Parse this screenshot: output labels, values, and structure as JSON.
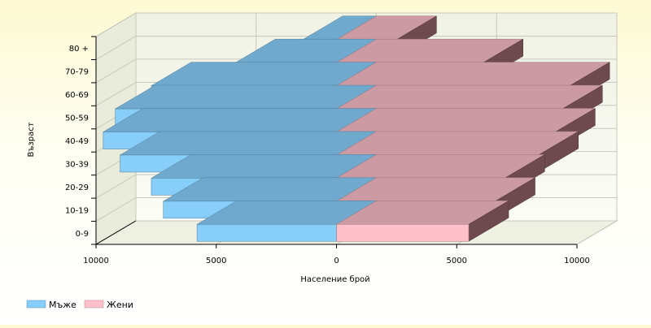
{
  "chart_data": {
    "type": "bar",
    "orientation": "horizontal",
    "style": "population-pyramid-3d",
    "categories": [
      "0-9",
      "10-19",
      "20-29",
      "30-39",
      "40-49",
      "50-59",
      "60-69",
      "70-79",
      "80 +"
    ],
    "series": [
      {
        "name": "Мъже",
        "side": "left",
        "color": "#87cefa",
        "values": [
          5800,
          7200,
          7700,
          9000,
          9700,
          9200,
          7700,
          4200,
          1400
        ]
      },
      {
        "name": "Жени",
        "side": "right",
        "color": "#ffc0cb",
        "values": [
          5500,
          6600,
          7000,
          8400,
          9100,
          9400,
          9700,
          6100,
          2500
        ]
      }
    ],
    "xlabel": "Население брой",
    "ylabel": "Възраст",
    "xlim": [
      -10000,
      10000
    ],
    "x_ticks": [
      -10000,
      -5000,
      0,
      5000,
      10000
    ],
    "x_tick_labels": [
      "10000",
      "5000",
      "0",
      "5000",
      "10000"
    ],
    "grid": true,
    "legend_position": "bottom-left"
  }
}
